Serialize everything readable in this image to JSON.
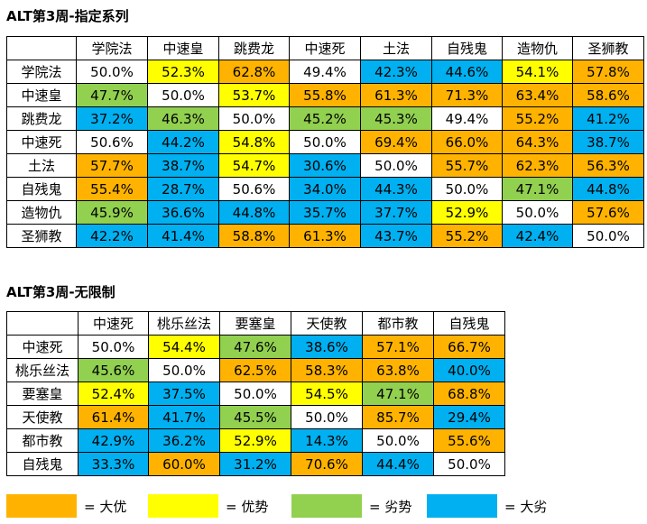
{
  "colors": {
    "big_advantage": "#FFB300",
    "advantage": "#FFFF00",
    "disadvantage": "#92D050",
    "big_disadvantage": "#00B0F0",
    "neutral": "#FFFFFF"
  },
  "table1": {
    "title": "ALT第3周-指定系列",
    "headers": [
      "学院法",
      "中速皇",
      "跳费龙",
      "中速死",
      "土法",
      "自残鬼",
      "造物仇",
      "圣狮教"
    ],
    "rows": [
      {
        "name": "学院法",
        "cells": [
          {
            "v": "50.0%",
            "c": "neutral"
          },
          {
            "v": "52.3%",
            "c": "advantage"
          },
          {
            "v": "62.8%",
            "c": "big_advantage"
          },
          {
            "v": "49.4%",
            "c": "neutral"
          },
          {
            "v": "42.3%",
            "c": "big_disadvantage"
          },
          {
            "v": "44.6%",
            "c": "big_disadvantage"
          },
          {
            "v": "54.1%",
            "c": "advantage"
          },
          {
            "v": "57.8%",
            "c": "big_advantage"
          }
        ]
      },
      {
        "name": "中速皇",
        "cells": [
          {
            "v": "47.7%",
            "c": "disadvantage"
          },
          {
            "v": "50.0%",
            "c": "neutral"
          },
          {
            "v": "53.7%",
            "c": "advantage"
          },
          {
            "v": "55.8%",
            "c": "big_advantage"
          },
          {
            "v": "61.3%",
            "c": "big_advantage"
          },
          {
            "v": "71.3%",
            "c": "big_advantage"
          },
          {
            "v": "63.4%",
            "c": "big_advantage"
          },
          {
            "v": "58.6%",
            "c": "big_advantage"
          }
        ]
      },
      {
        "name": "跳费龙",
        "cells": [
          {
            "v": "37.2%",
            "c": "big_disadvantage"
          },
          {
            "v": "46.3%",
            "c": "disadvantage"
          },
          {
            "v": "50.0%",
            "c": "neutral"
          },
          {
            "v": "45.2%",
            "c": "disadvantage"
          },
          {
            "v": "45.3%",
            "c": "disadvantage"
          },
          {
            "v": "49.4%",
            "c": "neutral"
          },
          {
            "v": "55.2%",
            "c": "big_advantage"
          },
          {
            "v": "41.2%",
            "c": "big_disadvantage"
          }
        ]
      },
      {
        "name": "中速死",
        "cells": [
          {
            "v": "50.6%",
            "c": "neutral"
          },
          {
            "v": "44.2%",
            "c": "big_disadvantage"
          },
          {
            "v": "54.8%",
            "c": "advantage"
          },
          {
            "v": "50.0%",
            "c": "neutral"
          },
          {
            "v": "69.4%",
            "c": "big_advantage"
          },
          {
            "v": "66.0%",
            "c": "big_advantage"
          },
          {
            "v": "64.3%",
            "c": "big_advantage"
          },
          {
            "v": "38.7%",
            "c": "big_disadvantage"
          }
        ]
      },
      {
        "name": "土法",
        "cells": [
          {
            "v": "57.7%",
            "c": "big_advantage"
          },
          {
            "v": "38.7%",
            "c": "big_disadvantage"
          },
          {
            "v": "54.7%",
            "c": "advantage"
          },
          {
            "v": "30.6%",
            "c": "big_disadvantage"
          },
          {
            "v": "50.0%",
            "c": "neutral"
          },
          {
            "v": "55.7%",
            "c": "big_advantage"
          },
          {
            "v": "62.3%",
            "c": "big_advantage"
          },
          {
            "v": "56.3%",
            "c": "big_advantage"
          }
        ]
      },
      {
        "name": "自残鬼",
        "cells": [
          {
            "v": "55.4%",
            "c": "big_advantage"
          },
          {
            "v": "28.7%",
            "c": "big_disadvantage"
          },
          {
            "v": "50.6%",
            "c": "neutral"
          },
          {
            "v": "34.0%",
            "c": "big_disadvantage"
          },
          {
            "v": "44.3%",
            "c": "big_disadvantage"
          },
          {
            "v": "50.0%",
            "c": "neutral"
          },
          {
            "v": "47.1%",
            "c": "disadvantage"
          },
          {
            "v": "44.8%",
            "c": "big_disadvantage"
          }
        ]
      },
      {
        "name": "造物仇",
        "cells": [
          {
            "v": "45.9%",
            "c": "disadvantage"
          },
          {
            "v": "36.6%",
            "c": "big_disadvantage"
          },
          {
            "v": "44.8%",
            "c": "big_disadvantage"
          },
          {
            "v": "35.7%",
            "c": "big_disadvantage"
          },
          {
            "v": "37.7%",
            "c": "big_disadvantage"
          },
          {
            "v": "52.9%",
            "c": "advantage"
          },
          {
            "v": "50.0%",
            "c": "neutral"
          },
          {
            "v": "57.6%",
            "c": "big_advantage"
          }
        ]
      },
      {
        "name": "圣狮教",
        "cells": [
          {
            "v": "42.2%",
            "c": "big_disadvantage"
          },
          {
            "v": "41.4%",
            "c": "big_disadvantage"
          },
          {
            "v": "58.8%",
            "c": "big_advantage"
          },
          {
            "v": "61.3%",
            "c": "big_advantage"
          },
          {
            "v": "43.7%",
            "c": "big_disadvantage"
          },
          {
            "v": "55.2%",
            "c": "big_advantage"
          },
          {
            "v": "42.4%",
            "c": "big_disadvantage"
          },
          {
            "v": "50.0%",
            "c": "neutral"
          }
        ]
      }
    ]
  },
  "table2": {
    "title": "ALT第3周-无限制",
    "headers": [
      "中速死",
      "桃乐丝法",
      "要塞皇",
      "天使教",
      "都市教",
      "自残鬼"
    ],
    "rows": [
      {
        "name": "中速死",
        "cells": [
          {
            "v": "50.0%",
            "c": "neutral"
          },
          {
            "v": "54.4%",
            "c": "advantage"
          },
          {
            "v": "47.6%",
            "c": "disadvantage"
          },
          {
            "v": "38.6%",
            "c": "big_disadvantage"
          },
          {
            "v": "57.1%",
            "c": "big_advantage"
          },
          {
            "v": "66.7%",
            "c": "big_advantage"
          }
        ]
      },
      {
        "name": "桃乐丝法",
        "cells": [
          {
            "v": "45.6%",
            "c": "disadvantage"
          },
          {
            "v": "50.0%",
            "c": "neutral"
          },
          {
            "v": "62.5%",
            "c": "big_advantage"
          },
          {
            "v": "58.3%",
            "c": "big_advantage"
          },
          {
            "v": "63.8%",
            "c": "big_advantage"
          },
          {
            "v": "40.0%",
            "c": "big_disadvantage"
          }
        ]
      },
      {
        "name": "要塞皇",
        "cells": [
          {
            "v": "52.4%",
            "c": "advantage"
          },
          {
            "v": "37.5%",
            "c": "big_disadvantage"
          },
          {
            "v": "50.0%",
            "c": "neutral"
          },
          {
            "v": "54.5%",
            "c": "advantage"
          },
          {
            "v": "47.1%",
            "c": "disadvantage"
          },
          {
            "v": "68.8%",
            "c": "big_advantage"
          }
        ]
      },
      {
        "name": "天使教",
        "cells": [
          {
            "v": "61.4%",
            "c": "big_advantage"
          },
          {
            "v": "41.7%",
            "c": "big_disadvantage"
          },
          {
            "v": "45.5%",
            "c": "disadvantage"
          },
          {
            "v": "50.0%",
            "c": "neutral"
          },
          {
            "v": "85.7%",
            "c": "big_advantage"
          },
          {
            "v": "29.4%",
            "c": "big_disadvantage"
          }
        ]
      },
      {
        "name": "都市教",
        "cells": [
          {
            "v": "42.9%",
            "c": "big_disadvantage"
          },
          {
            "v": "36.2%",
            "c": "big_disadvantage"
          },
          {
            "v": "52.9%",
            "c": "advantage"
          },
          {
            "v": "14.3%",
            "c": "big_disadvantage"
          },
          {
            "v": "50.0%",
            "c": "neutral"
          },
          {
            "v": "55.6%",
            "c": "big_advantage"
          }
        ]
      },
      {
        "name": "自残鬼",
        "cells": [
          {
            "v": "33.3%",
            "c": "big_disadvantage"
          },
          {
            "v": "60.0%",
            "c": "big_advantage"
          },
          {
            "v": "31.2%",
            "c": "big_disadvantage"
          },
          {
            "v": "70.6%",
            "c": "big_advantage"
          },
          {
            "v": "44.4%",
            "c": "big_disadvantage"
          },
          {
            "v": "50.0%",
            "c": "neutral"
          }
        ]
      }
    ]
  },
  "legend": [
    {
      "label": "= 大优",
      "c": "big_advantage"
    },
    {
      "label": "= 优势",
      "c": "advantage"
    },
    {
      "label": "= 劣势",
      "c": "disadvantage"
    },
    {
      "label": "= 大劣",
      "c": "big_disadvantage"
    }
  ]
}
